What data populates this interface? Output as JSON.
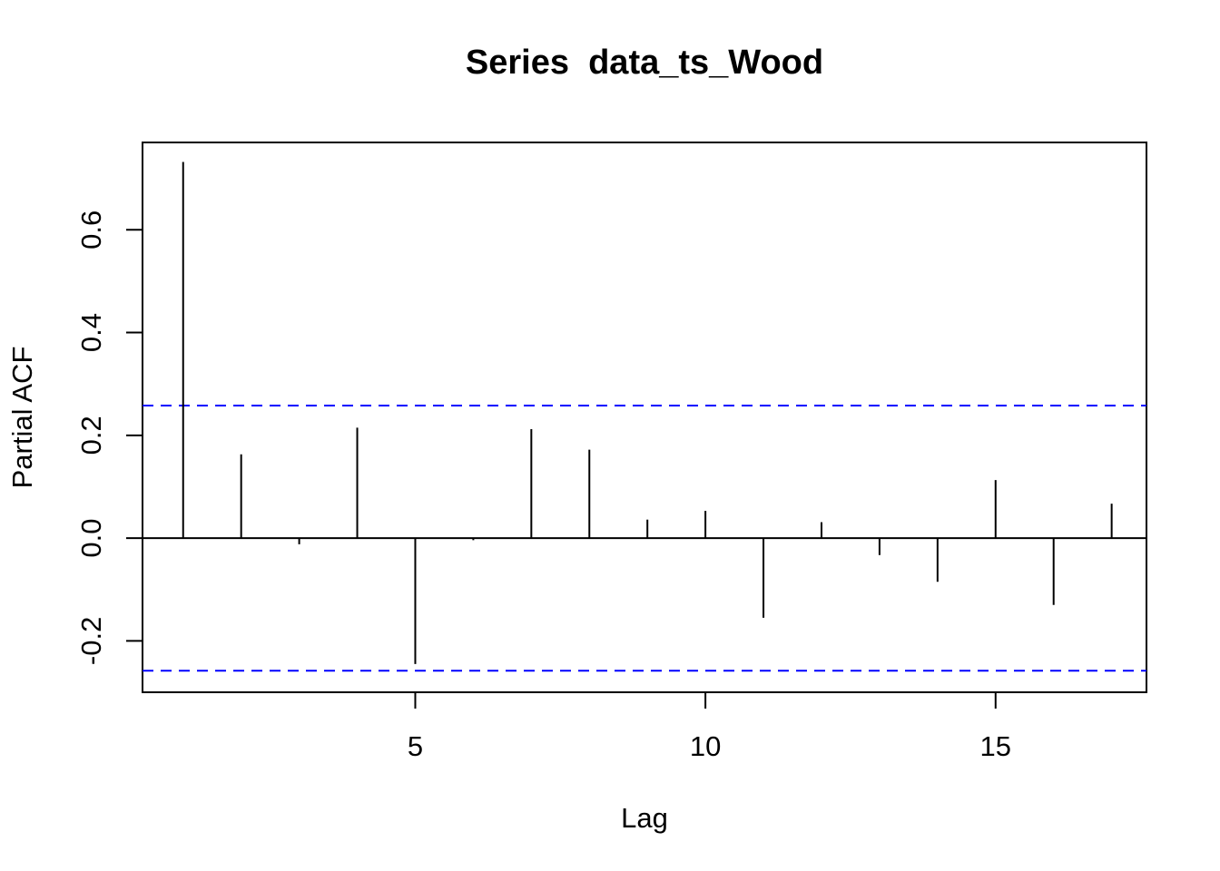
{
  "chart_data": {
    "type": "bar",
    "title": "Series  data_ts_Wood",
    "xlabel": "Lag",
    "ylabel": "Partial ACF",
    "x": [
      1,
      2,
      3,
      4,
      5,
      6,
      7,
      8,
      9,
      10,
      11,
      12,
      13,
      14,
      15,
      16,
      17
    ],
    "values": [
      0.732,
      0.163,
      -0.012,
      0.215,
      -0.245,
      -0.004,
      0.212,
      0.172,
      0.036,
      0.053,
      -0.155,
      0.031,
      -0.033,
      -0.085,
      0.113,
      -0.13,
      0.067
    ],
    "confidence_bounds": [
      0.258,
      -0.258
    ],
    "xlim": [
      0.3,
      17.6
    ],
    "ylim": [
      -0.3,
      0.77
    ],
    "xticks": [
      5,
      10,
      15
    ],
    "yticks": [
      -0.2,
      0.0,
      0.2,
      0.4,
      0.6
    ],
    "ytick_labels": [
      "-0.2",
      "0.0",
      "0.2",
      "0.4",
      "0.6"
    ],
    "grid": false,
    "colors": {
      "bars": "#000000",
      "zero_line": "#000000",
      "confidence_lines": "#0000ff",
      "frame": "#000000"
    }
  }
}
